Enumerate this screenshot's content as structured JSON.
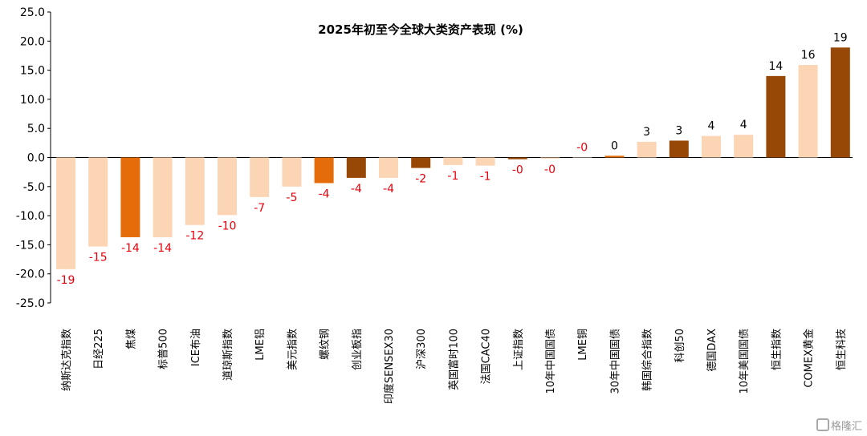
{
  "chart_data": {
    "type": "bar",
    "title": "2025年初至今全球大类资产表现 (%)",
    "xlabel": "",
    "ylabel": "",
    "ylim": [
      -25,
      25
    ],
    "yticks": [
      25,
      20,
      15,
      10,
      5,
      0,
      -5,
      -10,
      -15,
      -20,
      -25
    ],
    "ytick_labels": [
      "25.0",
      "20.0",
      "15.0",
      "10.0",
      "5.0",
      "0.0",
      "-5.0",
      "-10.0",
      "-15.0",
      "-20.0",
      "-25.0"
    ],
    "grid": false,
    "legend": "none",
    "categories": [
      "纳斯达克指数",
      "日经225",
      "焦煤",
      "标普500",
      "ICE布油",
      "道琼斯指数",
      "LME铝",
      "美元指数",
      "螺纹钢",
      "创业板指",
      "印度SENSEX30",
      "沪深300",
      "英国富时100",
      "法国CAC40",
      "上证指数",
      "10年中国国债",
      "LME铜",
      "30年中国国债",
      "韩国综合指数",
      "科创50",
      "德国DAX",
      "10年美国国债",
      "恒生指数",
      "COMEX黄金",
      "恒生科技"
    ],
    "values": [
      -19.2,
      -15.3,
      -13.7,
      -13.7,
      -11.6,
      -9.9,
      -6.8,
      -5.0,
      -4.4,
      -3.5,
      -3.5,
      -1.8,
      -1.3,
      -1.4,
      -0.3,
      -0.2,
      0.0,
      0.3,
      2.7,
      2.9,
      3.7,
      3.9,
      14.0,
      15.9,
      18.9
    ],
    "data_labels": [
      "-19",
      "-15",
      "-14",
      "-14",
      "-12",
      "-10",
      "-7",
      "-5",
      "-4",
      "-4",
      "-4",
      "-2",
      "-1",
      "-1",
      "-0",
      "-0",
      "-0",
      "0",
      "3",
      "3",
      "4",
      "4",
      "14",
      "16",
      "19"
    ],
    "bar_colors": [
      "#FCD5B5",
      "#FCD5B5",
      "#E46C0A",
      "#FCD5B5",
      "#FCD5B5",
      "#FCD5B5",
      "#FCD5B5",
      "#FCD5B5",
      "#E46C0A",
      "#974806",
      "#FCD5B5",
      "#974806",
      "#FCD5B5",
      "#FCD5B5",
      "#974806",
      "#FCD5B5",
      "#FCD5B5",
      "#E46C0A",
      "#FCD5B5",
      "#974806",
      "#FCD5B5",
      "#FCD5B5",
      "#974806",
      "#FCD5B5",
      "#974806"
    ],
    "colors": {
      "negative_label": "#E8000B",
      "positive_label": "#000000"
    }
  },
  "watermark": {
    "text": "格隆汇",
    "icon": "glh-logo-icon"
  }
}
